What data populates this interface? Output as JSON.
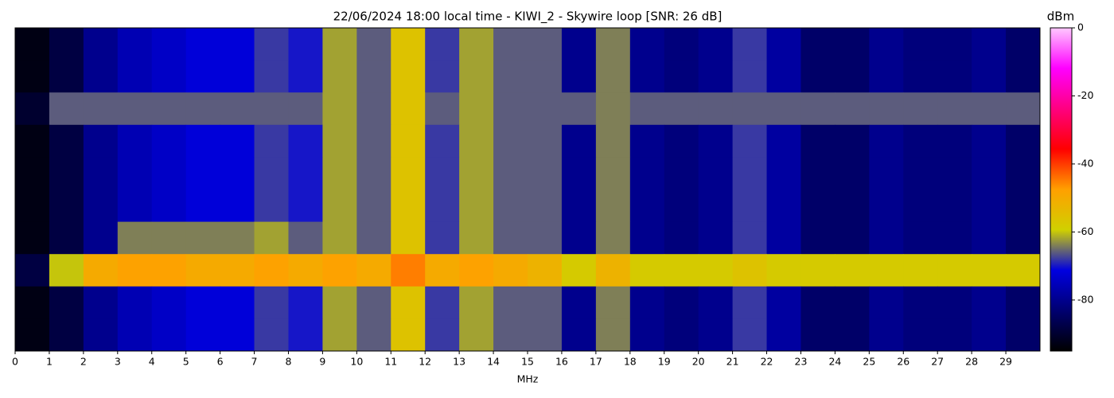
{
  "chart_data": {
    "type": "heatmap",
    "title": "22/06/2024 18:00 local time - KIWI_2 - Skywire loop [SNR: 26 dB]",
    "x_label": "MHz",
    "colorbar_label": "dBm",
    "bins": [
      0,
      1,
      2,
      3,
      4,
      5,
      6,
      7,
      8,
      9,
      10,
      11,
      12,
      13,
      14,
      15,
      16,
      17,
      18,
      19,
      20,
      21,
      22,
      23,
      24,
      25,
      26,
      27,
      28,
      29,
      30
    ],
    "xlim": [
      0,
      30
    ],
    "xticks": [
      0,
      1,
      2,
      3,
      4,
      5,
      6,
      7,
      8,
      9,
      10,
      11,
      12,
      13,
      14,
      15,
      16,
      17,
      18,
      19,
      20,
      21,
      22,
      23,
      24,
      25,
      26,
      27,
      28,
      29
    ],
    "zlim": [
      -95,
      0
    ],
    "zticks": [
      0,
      -20,
      -40,
      -60,
      -80
    ],
    "colormap": [
      "#000000",
      "#000070",
      "#0000e0",
      "#d0d000",
      "#ffa000",
      "#ff0000",
      "#ff0080",
      "#ff00ff",
      "#ffc8ff"
    ],
    "values": [
      [
        -93,
        -88,
        -80,
        -76,
        -74,
        -72,
        -72,
        -68,
        -70,
        -62,
        -66,
        -56,
        -68,
        -62,
        -66,
        -66,
        -80,
        -64,
        -80,
        -82,
        -80,
        -68,
        -78,
        -84,
        -84,
        -80,
        -82,
        -82,
        -80,
        -84
      ],
      [
        -93,
        -88,
        -80,
        -76,
        -74,
        -72,
        -72,
        -68,
        -70,
        -62,
        -66,
        -56,
        -68,
        -62,
        -66,
        -66,
        -80,
        -64,
        -80,
        -82,
        -80,
        -68,
        -78,
        -84,
        -84,
        -80,
        -82,
        -82,
        -80,
        -84
      ],
      [
        -90,
        -66,
        -66,
        -66,
        -66,
        -66,
        -66,
        -66,
        -66,
        -62,
        -66,
        -56,
        -66,
        -62,
        -66,
        -66,
        -66,
        -64,
        -66,
        -66,
        -66,
        -66,
        -66,
        -66,
        -66,
        -66,
        -66,
        -66,
        -66,
        -66
      ],
      [
        -93,
        -88,
        -80,
        -76,
        -74,
        -72,
        -72,
        -68,
        -70,
        -62,
        -66,
        -56,
        -68,
        -62,
        -66,
        -66,
        -80,
        -64,
        -80,
        -82,
        -80,
        -68,
        -78,
        -84,
        -84,
        -80,
        -82,
        -82,
        -80,
        -84
      ],
      [
        -93,
        -88,
        -80,
        -76,
        -74,
        -72,
        -72,
        -68,
        -70,
        -62,
        -66,
        -56,
        -68,
        -62,
        -66,
        -66,
        -80,
        -64,
        -80,
        -82,
        -80,
        -68,
        -78,
        -84,
        -84,
        -80,
        -82,
        -82,
        -80,
        -84
      ],
      [
        -93,
        -88,
        -80,
        -76,
        -74,
        -72,
        -72,
        -68,
        -70,
        -62,
        -66,
        -56,
        -68,
        -62,
        -66,
        -66,
        -80,
        -64,
        -80,
        -82,
        -80,
        -68,
        -78,
        -84,
        -84,
        -80,
        -82,
        -82,
        -80,
        -84
      ],
      [
        -93,
        -88,
        -80,
        -64,
        -64,
        -64,
        -64,
        -62,
        -66,
        -62,
        -66,
        -56,
        -68,
        -62,
        -66,
        -66,
        -80,
        -64,
        -80,
        -82,
        -80,
        -68,
        -78,
        -84,
        -84,
        -80,
        -82,
        -82,
        -80,
        -84
      ],
      [
        -88,
        -60,
        -50,
        -48,
        -48,
        -50,
        -50,
        -48,
        -50,
        -48,
        -50,
        -45,
        -50,
        -48,
        -50,
        -52,
        -58,
        -52,
        -58,
        -58,
        -58,
        -56,
        -58,
        -58,
        -58,
        -58,
        -58,
        -58,
        -58,
        -58
      ],
      [
        -93,
        -88,
        -80,
        -76,
        -74,
        -72,
        -72,
        -68,
        -70,
        -62,
        -66,
        -56,
        -68,
        -62,
        -66,
        -66,
        -80,
        -64,
        -80,
        -82,
        -80,
        -68,
        -78,
        -84,
        -84,
        -80,
        -82,
        -82,
        -80,
        -84
      ],
      [
        -93,
        -88,
        -80,
        -76,
        -74,
        -72,
        -72,
        -68,
        -70,
        -62,
        -66,
        -56,
        -68,
        -62,
        -66,
        -66,
        -80,
        -64,
        -80,
        -82,
        -80,
        -68,
        -78,
        -84,
        -84,
        -80,
        -82,
        -82,
        -80,
        -84
      ]
    ]
  }
}
